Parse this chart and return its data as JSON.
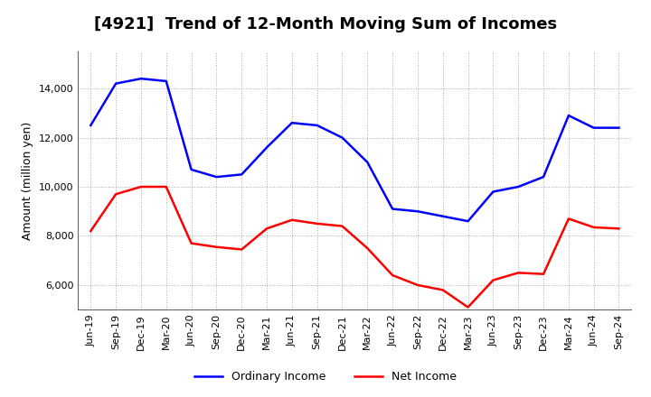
{
  "title": "[4921]  Trend of 12-Month Moving Sum of Incomes",
  "ylabel": "Amount (million yen)",
  "x_labels": [
    "Jun-19",
    "Sep-19",
    "Dec-19",
    "Mar-20",
    "Jun-20",
    "Sep-20",
    "Dec-20",
    "Mar-21",
    "Jun-21",
    "Sep-21",
    "Dec-21",
    "Mar-22",
    "Jun-22",
    "Sep-22",
    "Dec-22",
    "Mar-23",
    "Jun-23",
    "Sep-23",
    "Dec-23",
    "Mar-24",
    "Jun-24",
    "Sep-24"
  ],
  "ordinary_income": [
    12500,
    14200,
    14400,
    14300,
    10700,
    10400,
    10500,
    11600,
    12600,
    12500,
    12000,
    11000,
    9100,
    9000,
    8800,
    8600,
    9800,
    10000,
    10400,
    12900,
    12400,
    12400
  ],
  "net_income": [
    8200,
    9700,
    10000,
    10000,
    7700,
    7550,
    7450,
    8300,
    8650,
    8500,
    8400,
    7500,
    6400,
    6000,
    5800,
    5100,
    6200,
    6500,
    6450,
    8700,
    8350,
    8300
  ],
  "ordinary_color": "#0000FF",
  "net_color": "#FF0000",
  "background_color": "#FFFFFF",
  "grid_color": "#AAAAAA",
  "ylim_min": 5000,
  "ylim_max": 15000,
  "yticks": [
    6000,
    8000,
    10000,
    12000,
    14000
  ],
  "legend_labels": [
    "Ordinary Income",
    "Net Income"
  ],
  "title_fontsize": 13,
  "ylabel_fontsize": 9,
  "tick_fontsize": 8
}
